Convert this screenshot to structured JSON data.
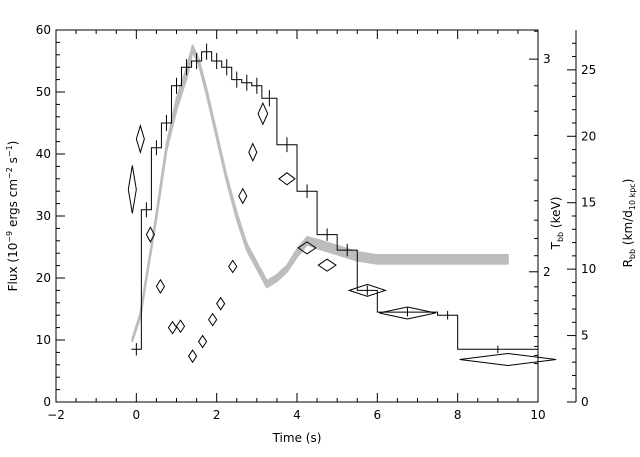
{
  "chart_data": {
    "type": "line",
    "xlabel": "Time (s)",
    "ylabel_left": "Flux (10^-9 ergs cm^-2 s^-1)",
    "ylabel_right_inner": "T_bb (keV)",
    "ylabel_right_outer": "R_bb (km/d_10 kpc)",
    "xlim": [
      -2,
      10
    ],
    "ylim_flux": [
      0,
      60
    ],
    "ylim_rbb": [
      0,
      28
    ],
    "temp_ticks": [
      2,
      3
    ],
    "temp_at_flux": [
      {
        "t": 2,
        "flux": 21
      },
      {
        "t": 3,
        "flux": 55.3
      }
    ],
    "x_ticks": [
      "-2",
      "0",
      "2",
      "4",
      "6",
      "8",
      "10"
    ],
    "y_ticks_flux": [
      "0",
      "10",
      "20",
      "30",
      "40",
      "50",
      "60"
    ],
    "y_ticks_rbb": [
      "0",
      "5",
      "10",
      "15",
      "20",
      "25"
    ],
    "series": [
      {
        "kind": "flux_histogram",
        "steps": [
          {
            "x0": -0.125,
            "x1": 0.125,
            "y": 8.5,
            "err": 1.0
          },
          {
            "x0": 0.125,
            "x1": 0.375,
            "y": 31,
            "err": 1.2
          },
          {
            "x0": 0.375,
            "x1": 0.625,
            "y": 41,
            "err": 1.2
          },
          {
            "x0": 0.625,
            "x1": 0.875,
            "y": 45,
            "err": 1.3
          },
          {
            "x0": 0.875,
            "x1": 1.125,
            "y": 51,
            "err": 1.3
          },
          {
            "x0": 1.125,
            "x1": 1.375,
            "y": 54,
            "err": 1.3
          },
          {
            "x0": 1.375,
            "x1": 1.625,
            "y": 55,
            "err": 1.3
          },
          {
            "x0": 1.625,
            "x1": 1.875,
            "y": 56.5,
            "err": 1.3
          },
          {
            "x0": 1.875,
            "x1": 2.125,
            "y": 55,
            "err": 1.3
          },
          {
            "x0": 2.125,
            "x1": 2.375,
            "y": 54,
            "err": 1.3
          },
          {
            "x0": 2.375,
            "x1": 2.625,
            "y": 52,
            "err": 1.3
          },
          {
            "x0": 2.625,
            "x1": 2.875,
            "y": 51.5,
            "err": 1.3
          },
          {
            "x0": 2.875,
            "x1": 3.125,
            "y": 51,
            "err": 1.3
          },
          {
            "x0": 3.125,
            "x1": 3.5,
            "y": 49,
            "err": 1.3
          },
          {
            "x0": 3.5,
            "x1": 4.0,
            "y": 41.5,
            "err": 1.2
          },
          {
            "x0": 4.0,
            "x1": 4.5,
            "y": 34,
            "err": 1.1
          },
          {
            "x0": 4.5,
            "x1": 5.0,
            "y": 27,
            "err": 1.0
          },
          {
            "x0": 5.0,
            "x1": 5.5,
            "y": 24.5,
            "err": 1.0
          },
          {
            "x0": 5.5,
            "x1": 6.0,
            "y": 18,
            "err": 0.8
          },
          {
            "x0": 6.0,
            "x1": 7.5,
            "y": 14.5,
            "err": 0.7
          },
          {
            "x0": 7.5,
            "x1": 8.0,
            "y": 14,
            "err": 0.7
          },
          {
            "x0": 8.0,
            "x1": 10.0,
            "y": 8.5,
            "err": 0.6
          }
        ]
      },
      {
        "kind": "temperature_band",
        "x": [
          -0.1,
          0.1,
          0.3,
          0.5,
          0.75,
          1.0,
          1.25,
          1.4,
          1.55,
          1.75,
          2.0,
          2.25,
          2.5,
          2.75,
          3.0,
          3.25,
          3.5,
          3.75,
          4.0,
          4.25,
          4.5,
          5.0,
          5.5,
          6.0,
          7.0,
          8.0,
          9.25
        ],
        "flux_equiv": [
          10,
          14,
          22,
          30,
          41,
          48,
          53,
          57,
          55,
          50,
          43,
          36,
          30,
          25,
          22,
          19,
          20,
          21.5,
          24,
          26,
          25.5,
          24.5,
          23.5,
          23,
          23,
          23,
          23
        ],
        "half_width": [
          0.2,
          0.3,
          0.3,
          0.4,
          0.5,
          0.9,
          0.8,
          0.5,
          0.4,
          0.4,
          0.4,
          0.4,
          0.5,
          0.5,
          0.5,
          0.5,
          0.5,
          0.5,
          0.6,
          0.6,
          0.7,
          0.7,
          0.7,
          0.7,
          0.7,
          0.7,
          0.7
        ]
      },
      {
        "kind": "radius_diamonds",
        "points": [
          {
            "x": -0.1,
            "y": 16,
            "xerr": 0.08,
            "yerr": 1.8
          },
          {
            "x": 0.1,
            "y": 19.8,
            "xerr": 0.1,
            "yerr": 1.0
          },
          {
            "x": 0.35,
            "y": 12.6,
            "xerr": 0.1,
            "yerr": 0.55
          },
          {
            "x": 0.6,
            "y": 8.7,
            "xerr": 0.1,
            "yerr": 0.5
          },
          {
            "x": 0.9,
            "y": 5.6,
            "xerr": 0.1,
            "yerr": 0.35
          },
          {
            "x": 1.1,
            "y": 5.7,
            "xerr": 0.1,
            "yerr": 0.35
          },
          {
            "x": 1.4,
            "y": 3.45,
            "xerr": 0.1,
            "yerr": 0.35
          },
          {
            "x": 1.65,
            "y": 4.55,
            "xerr": 0.1,
            "yerr": 0.35
          },
          {
            "x": 1.9,
            "y": 6.2,
            "xerr": 0.1,
            "yerr": 0.4
          },
          {
            "x": 2.1,
            "y": 7.4,
            "xerr": 0.1,
            "yerr": 0.45
          },
          {
            "x": 2.4,
            "y": 10.2,
            "xerr": 0.1,
            "yerr": 0.45
          },
          {
            "x": 2.65,
            "y": 15.5,
            "xerr": 0.1,
            "yerr": 0.55
          },
          {
            "x": 2.9,
            "y": 18.8,
            "xerr": 0.1,
            "yerr": 0.65
          },
          {
            "x": 3.15,
            "y": 21.7,
            "xerr": 0.12,
            "yerr": 0.8
          },
          {
            "x": 3.75,
            "y": 16.8,
            "xerr": 0.2,
            "yerr": 0.45
          },
          {
            "x": 4.25,
            "y": 11.6,
            "xerr": 0.22,
            "yerr": 0.38
          },
          {
            "x": 4.75,
            "y": 10.3,
            "xerr": 0.22,
            "yerr": 0.38
          },
          {
            "x": 5.75,
            "y": 8.4,
            "xerr": 0.45,
            "yerr": 0.3
          },
          {
            "x": 6.75,
            "y": 6.7,
            "xerr": 0.7,
            "yerr": 0.3
          },
          {
            "x": 9.25,
            "y": 3.2,
            "xerr": 1.2,
            "yerr": 0.3
          }
        ]
      }
    ]
  }
}
